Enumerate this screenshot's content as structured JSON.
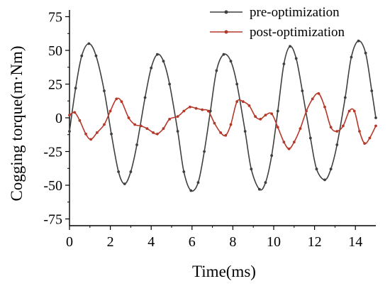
{
  "chart_data": {
    "type": "line",
    "title": "",
    "xlabel": "Time(ms)",
    "ylabel": "Cogging torque(m·Nm)",
    "xlim": [
      0,
      15
    ],
    "ylim": [
      -80,
      80
    ],
    "xticks": [
      0,
      2,
      4,
      6,
      8,
      10,
      12,
      14
    ],
    "yticks": [
      -75,
      -50,
      -25,
      0,
      25,
      50,
      75
    ],
    "grid": false,
    "legend_position": "top-right",
    "series": [
      {
        "name": "pre-optimization",
        "color": "#3f3f3f",
        "marker": "circle",
        "points": [
          [
            0.0,
            -10
          ],
          [
            0.3,
            22
          ],
          [
            0.6,
            46
          ],
          [
            0.95,
            55
          ],
          [
            1.3,
            46
          ],
          [
            1.7,
            20
          ],
          [
            2.05,
            -12
          ],
          [
            2.4,
            -40
          ],
          [
            2.7,
            -49
          ],
          [
            3.0,
            -40
          ],
          [
            3.3,
            -20
          ],
          [
            3.7,
            15
          ],
          [
            4.0,
            37
          ],
          [
            4.3,
            47
          ],
          [
            4.6,
            42
          ],
          [
            4.9,
            25
          ],
          [
            5.3,
            -10
          ],
          [
            5.6,
            -40
          ],
          [
            5.95,
            -54
          ],
          [
            6.3,
            -48
          ],
          [
            6.6,
            -25
          ],
          [
            6.9,
            5
          ],
          [
            7.2,
            35
          ],
          [
            7.55,
            47
          ],
          [
            7.9,
            42
          ],
          [
            8.2,
            25
          ],
          [
            8.6,
            -10
          ],
          [
            8.9,
            -38
          ],
          [
            9.3,
            -53
          ],
          [
            9.6,
            -48
          ],
          [
            9.9,
            -28
          ],
          [
            10.2,
            5
          ],
          [
            10.5,
            40
          ],
          [
            10.8,
            53
          ],
          [
            11.1,
            44
          ],
          [
            11.4,
            20
          ],
          [
            11.8,
            -15
          ],
          [
            12.1,
            -38
          ],
          [
            12.5,
            -46
          ],
          [
            12.8,
            -38
          ],
          [
            13.1,
            -20
          ],
          [
            13.5,
            15
          ],
          [
            13.8,
            45
          ],
          [
            14.15,
            57
          ],
          [
            14.5,
            48
          ],
          [
            14.8,
            20
          ],
          [
            15.0,
            0
          ]
        ]
      },
      {
        "name": "post-optimization",
        "color": "#b5392a",
        "marker": "circle",
        "points": [
          [
            0.0,
            2
          ],
          [
            0.25,
            4
          ],
          [
            0.5,
            -2
          ],
          [
            0.8,
            -12
          ],
          [
            1.05,
            -16
          ],
          [
            1.35,
            -11
          ],
          [
            1.7,
            -5
          ],
          [
            2.0,
            5
          ],
          [
            2.3,
            14
          ],
          [
            2.55,
            12
          ],
          [
            2.9,
            0
          ],
          [
            3.2,
            -5
          ],
          [
            3.5,
            -6
          ],
          [
            3.8,
            -8
          ],
          [
            4.1,
            -11
          ],
          [
            4.3,
            -12
          ],
          [
            4.6,
            -8
          ],
          [
            4.9,
            -1
          ],
          [
            5.3,
            1
          ],
          [
            5.6,
            5
          ],
          [
            5.9,
            8
          ],
          [
            6.2,
            7
          ],
          [
            6.5,
            6
          ],
          [
            6.8,
            5
          ],
          [
            7.1,
            -4
          ],
          [
            7.4,
            -11
          ],
          [
            7.65,
            -13
          ],
          [
            7.9,
            -5
          ],
          [
            8.2,
            12
          ],
          [
            8.5,
            12
          ],
          [
            8.8,
            9
          ],
          [
            9.1,
            1
          ],
          [
            9.35,
            -1
          ],
          [
            9.6,
            2
          ],
          [
            9.9,
            3
          ],
          [
            10.2,
            -7
          ],
          [
            10.5,
            -18
          ],
          [
            10.75,
            -23
          ],
          [
            11.0,
            -18
          ],
          [
            11.3,
            -8
          ],
          [
            11.6,
            5
          ],
          [
            11.9,
            14
          ],
          [
            12.2,
            18
          ],
          [
            12.5,
            8
          ],
          [
            12.8,
            -7
          ],
          [
            13.1,
            -10
          ],
          [
            13.4,
            -6
          ],
          [
            13.7,
            5
          ],
          [
            13.95,
            5
          ],
          [
            14.2,
            -10
          ],
          [
            14.45,
            -19
          ],
          [
            14.7,
            -15
          ],
          [
            15.0,
            -6
          ]
        ]
      }
    ]
  }
}
